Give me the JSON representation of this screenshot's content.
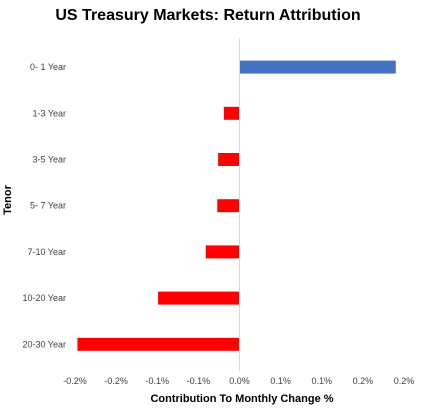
{
  "chart_data": {
    "type": "bar",
    "orientation": "horizontal",
    "title": "US Treasury  Markets: Return Attribution",
    "xlabel": "Contribution To Monthly Change %",
    "ylabel": "Tenor",
    "categories": [
      "0- 1 Year",
      "1-3 Year",
      "3-5 Year",
      "5- 7 Year",
      "7-10 Year",
      "10-20 Year",
      "20-30 Year"
    ],
    "values": [
      0.19,
      -0.019,
      -0.026,
      -0.027,
      -0.041,
      -0.099,
      -0.197
    ],
    "colors": [
      "#4472C4",
      "#FF0000",
      "#FF0000",
      "#FF0000",
      "#FF0000",
      "#FF0000",
      "#FF0000"
    ],
    "xlim": [
      -0.2,
      0.2
    ],
    "xticks": [
      -0.2,
      -0.15,
      -0.1,
      -0.05,
      0.0,
      0.05,
      0.1,
      0.15,
      0.2
    ],
    "xtick_labels": [
      "-0.2%",
      "-0.2%",
      "-0.1%",
      "-0.1%",
      "0.0%",
      "0.1%",
      "0.1%",
      "0.2%",
      "0.2%"
    ],
    "grid": false,
    "legend": "none"
  }
}
